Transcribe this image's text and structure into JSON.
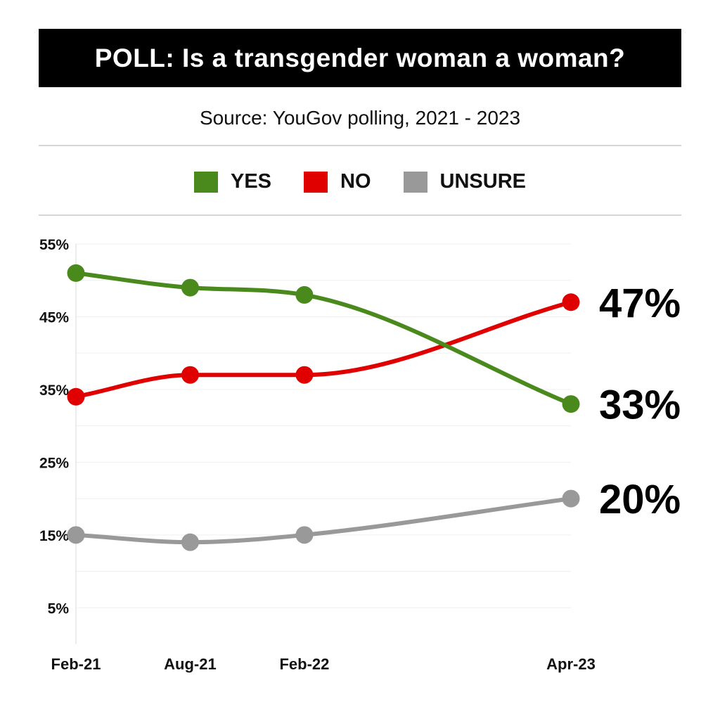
{
  "title": "POLL: Is a transgender woman a woman?",
  "source": "Source: YouGov polling, 2021 - 2023",
  "chart_data": {
    "type": "line",
    "title": "POLL: Is a transgender woman a woman?",
    "subtitle": "Source: YouGov polling, 2021 - 2023",
    "categories": [
      "Feb-21",
      "Aug-21",
      "Feb-22",
      "Apr-23"
    ],
    "x_positions": [
      0,
      6,
      12,
      26
    ],
    "series": [
      {
        "name": "YES",
        "color": "#4a8a1c",
        "values": [
          51,
          49,
          48,
          33
        ],
        "end_label": "33%"
      },
      {
        "name": "NO",
        "color": "#e00000",
        "values": [
          34,
          37,
          37,
          47
        ],
        "end_label": "47%"
      },
      {
        "name": "UNSURE",
        "color": "#999999",
        "values": [
          15,
          14,
          15,
          20
        ],
        "end_label": "20%"
      }
    ],
    "ylim": [
      0,
      55
    ],
    "yticks": [
      5,
      15,
      25,
      35,
      45,
      55
    ],
    "ytick_labels": [
      "5%",
      "15%",
      "25%",
      "35%",
      "45%",
      "55%"
    ],
    "grid": true,
    "legend_position": "top-center",
    "xlabel": "",
    "ylabel": ""
  }
}
